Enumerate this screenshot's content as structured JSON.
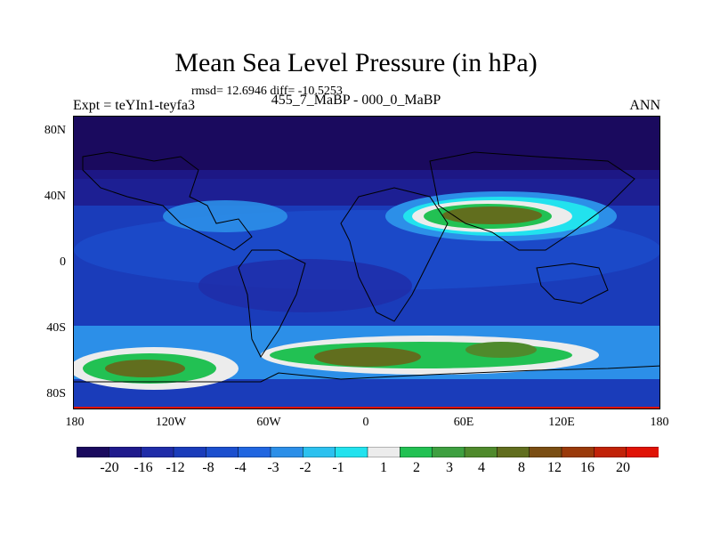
{
  "title": "Mean Sea Level Pressure (in hPa)",
  "stats": "rmsd= 12.6946 diff= -10.5253",
  "expt_label": "Expt = teYIn1-teyfa3",
  "subtitle": "455_7_MaBP - 000_0_MaBP",
  "season": "ANN",
  "chart_data": {
    "type": "heatmap",
    "title": "Mean Sea Level Pressure (in hPa)",
    "variable": "MSLP difference",
    "units": "hPa",
    "x_tick_labels": [
      "180",
      "120W",
      "60W",
      "0",
      "60E",
      "120E",
      "180"
    ],
    "x_ticks": [
      -180,
      -120,
      -60,
      0,
      60,
      120,
      180
    ],
    "y_tick_labels": [
      "80N",
      "40N",
      "0",
      "40S",
      "80S"
    ],
    "y_ticks": [
      80,
      40,
      0,
      -40,
      -80
    ],
    "xlim": [
      -180,
      180
    ],
    "ylim": [
      -90,
      90
    ],
    "colorbar_levels": [
      "-20",
      "-16",
      "-12",
      "-8",
      "-4",
      "-3",
      "-2",
      "-1",
      "1",
      "2",
      "3",
      "4",
      "8",
      "12",
      "16",
      "20"
    ],
    "colorbar_colors": [
      "#1a0a5e",
      "#1f1a8c",
      "#1f2ca8",
      "#1a3cba",
      "#1c4fce",
      "#2166e0",
      "#2c8fe8",
      "#2cc1ef",
      "#22e2ee",
      "#ececec",
      "#22c153",
      "#3ea040",
      "#4f8a2c",
      "#616e1e",
      "#7a4e13",
      "#9a3a0a",
      "#c12208",
      "#e01306"
    ],
    "background_level_color": "#1a3cba",
    "features": [
      {
        "name": "north-polar-low",
        "value_range": [
          -20,
          -16
        ]
      },
      {
        "name": "east-asia-high",
        "center": [
          70,
          28
        ],
        "value_range": [
          4,
          8
        ]
      },
      {
        "name": "south-high-west",
        "center": [
          -140,
          -64
        ],
        "value_range": [
          2,
          4
        ]
      },
      {
        "name": "south-high-central",
        "center": [
          0,
          -58
        ],
        "value_range": [
          4,
          8
        ]
      },
      {
        "name": "south-high-east",
        "center": [
          90,
          -52
        ],
        "value_range": [
          2,
          4
        ]
      },
      {
        "name": "southern-edge",
        "value_range": [
          16,
          20
        ]
      }
    ]
  }
}
